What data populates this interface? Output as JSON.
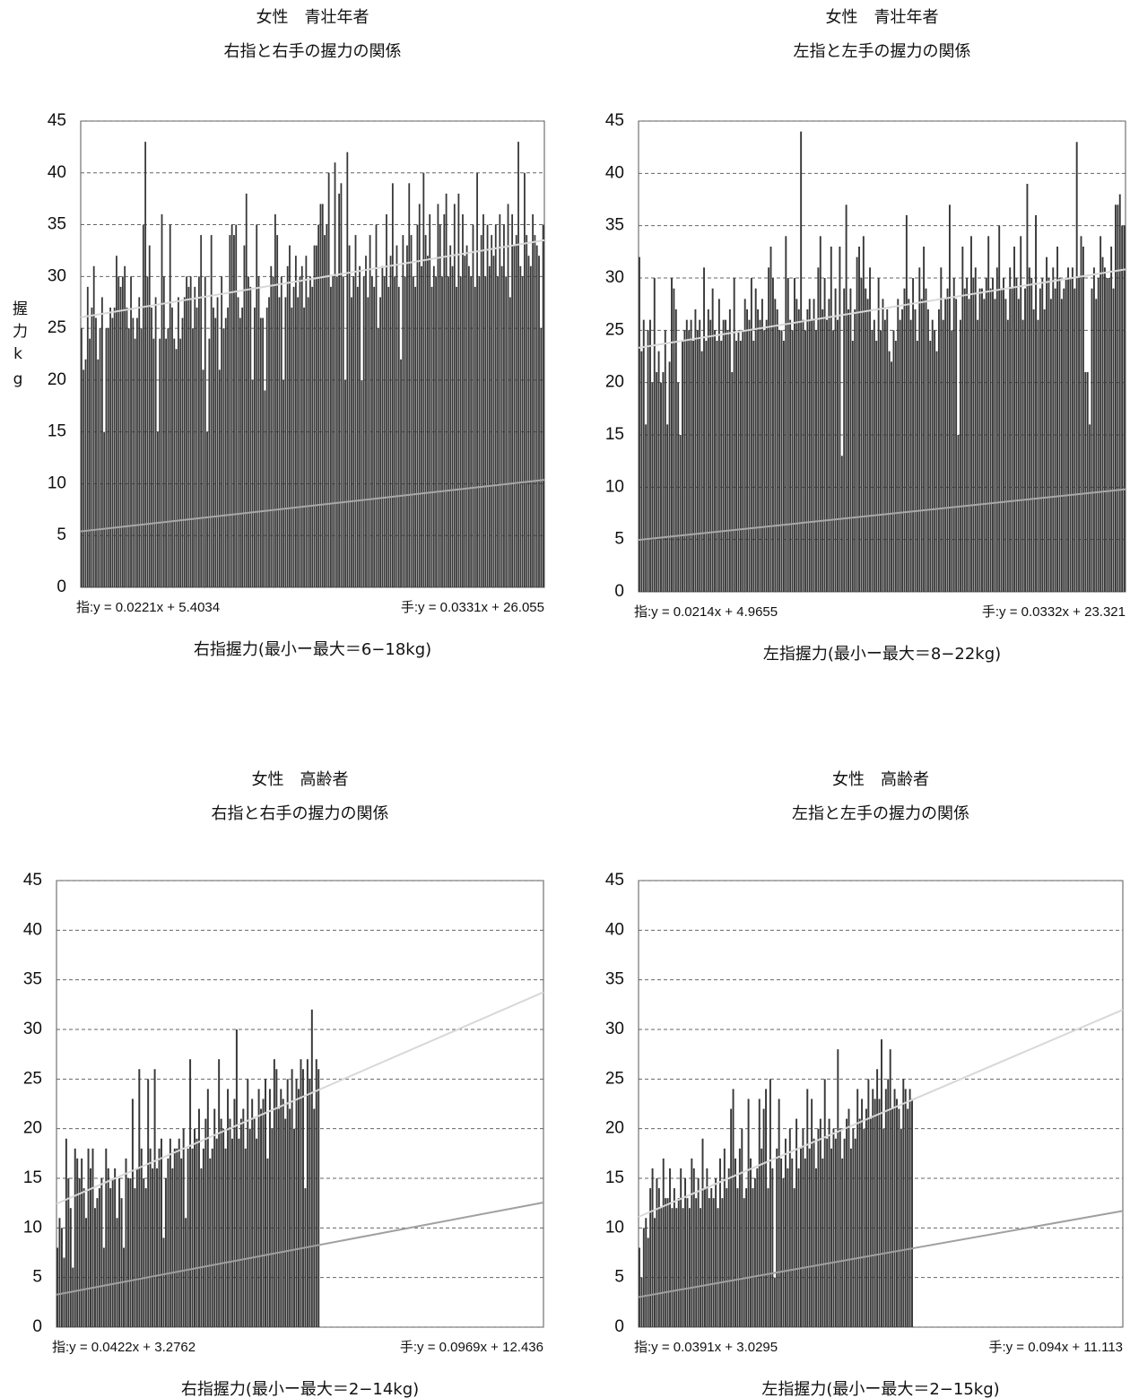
{
  "chart_data": [
    {
      "type": "bar",
      "title": "女性　青壮年者",
      "subtitle": "右指と右手の握力の関係",
      "y_label": "握力kg",
      "x_label": "右指握力(最小ー最大＝6−18kg)",
      "color": "#383838",
      "grid": true,
      "xlim": [
        0,
        225
      ],
      "ylim": [
        0,
        45
      ],
      "yticks": [
        0,
        5,
        10,
        15,
        20,
        25,
        30,
        35,
        40,
        45
      ],
      "values": [
        25,
        21,
        22,
        29,
        24,
        27,
        31,
        26,
        22,
        25,
        28,
        15,
        25,
        25,
        27,
        26,
        27,
        32,
        30,
        29,
        30,
        31,
        27,
        25,
        30,
        26,
        24,
        26,
        28,
        25,
        35,
        43,
        30,
        33,
        27,
        24,
        28,
        15,
        24,
        36,
        30,
        24,
        25,
        35,
        27,
        24,
        23,
        28,
        24,
        26,
        28,
        30,
        29,
        30,
        25,
        29,
        27,
        30,
        34,
        21,
        30,
        15,
        24,
        34,
        27,
        26,
        28,
        21,
        30,
        25,
        26,
        27,
        34,
        35,
        34,
        35,
        28,
        26,
        27,
        33,
        38,
        30,
        29,
        20,
        27,
        35,
        30,
        26,
        26,
        19,
        27,
        28,
        31,
        30,
        36,
        34,
        28,
        30,
        20,
        28,
        31,
        33,
        27,
        29,
        32,
        28,
        30,
        31,
        27,
        32,
        28,
        30,
        29,
        33,
        33,
        35,
        37,
        37,
        34,
        35,
        40,
        29,
        30,
        41,
        30,
        38,
        39,
        30,
        20,
        42,
        33,
        28,
        30,
        34,
        29,
        31,
        20,
        30,
        32,
        28,
        34,
        30,
        29,
        35,
        25,
        28,
        31,
        30,
        36,
        29,
        32,
        39,
        30,
        33,
        29,
        22,
        34,
        30,
        33,
        39,
        34,
        30,
        29,
        35,
        37,
        31,
        40,
        34,
        32,
        36,
        29,
        31,
        30,
        37,
        35,
        30,
        36,
        38,
        30,
        33,
        31,
        37,
        29,
        38,
        30,
        36,
        32,
        33,
        31,
        30,
        35,
        29,
        40,
        30,
        34,
        36,
        30,
        35,
        31,
        34,
        32,
        35,
        30,
        36,
        31,
        35,
        30,
        37,
        28,
        36,
        33,
        34,
        43,
        31,
        30,
        40,
        34,
        32,
        31,
        36,
        34,
        33,
        32,
        25,
        35
      ],
      "trendlines": [
        {
          "label": "指:y = 0.0221x + 5.4034",
          "slope": 0.0221,
          "intercept": 5.4034,
          "color": "#a8a8a8"
        },
        {
          "label": "手:y = 0.0331x + 26.055",
          "slope": 0.0331,
          "intercept": 26.055,
          "color": "#d8d8d8"
        }
      ]
    },
    {
      "type": "bar",
      "title": "女性　青壮年者",
      "subtitle": "左指と左手の握力の関係",
      "x_label": "左指握力(最小ー最大＝8−22kg)",
      "color": "#383838",
      "grid": true,
      "xlim": [
        0,
        226
      ],
      "ylim": [
        0,
        45
      ],
      "yticks": [
        0,
        5,
        10,
        15,
        20,
        25,
        30,
        35,
        40,
        45
      ],
      "values": [
        32,
        23,
        26,
        16,
        25,
        26,
        20,
        30,
        21,
        23,
        20,
        21,
        25,
        16,
        22,
        30,
        29,
        27,
        20,
        15,
        24,
        25,
        26,
        25,
        26,
        24,
        27,
        25,
        26,
        23,
        31,
        24,
        27,
        26,
        29,
        25,
        24,
        28,
        24,
        26,
        26,
        25,
        27,
        21,
        30,
        24,
        25,
        24,
        25,
        28,
        27,
        26,
        30,
        24,
        29,
        27,
        26,
        28,
        25,
        26,
        31,
        33,
        30,
        28,
        27,
        25,
        25,
        24,
        34,
        30,
        26,
        25,
        30,
        28,
        27,
        44,
        26,
        25,
        27,
        28,
        26,
        28,
        25,
        31,
        34,
        27,
        30,
        26,
        28,
        33,
        25,
        29,
        26,
        33,
        13,
        29,
        37,
        27,
        29,
        24,
        27,
        32,
        33,
        30,
        34,
        29,
        28,
        31,
        25,
        26,
        24,
        30,
        25,
        28,
        26,
        27,
        23,
        22,
        25,
        24,
        28,
        26,
        27,
        29,
        36,
        28,
        26,
        30,
        27,
        24,
        31,
        28,
        33,
        29,
        27,
        24,
        26,
        25,
        23,
        27,
        31,
        26,
        28,
        29,
        37,
        25,
        30,
        28,
        15,
        26,
        33,
        29,
        30,
        28,
        34,
        30,
        31,
        26,
        29,
        29,
        28,
        30,
        34,
        29,
        30,
        28,
        31,
        35,
        29,
        30,
        28,
        26,
        31,
        29,
        33,
        30,
        28,
        34,
        26,
        29,
        39,
        31,
        30,
        27,
        36,
        26,
        29,
        30,
        27,
        32,
        30,
        28,
        31,
        29,
        33,
        30,
        28,
        29,
        30,
        31,
        30,
        31,
        29,
        43,
        30,
        34,
        33,
        21,
        21,
        16,
        29,
        31,
        28,
        30,
        34,
        32,
        31,
        30,
        30,
        33,
        29,
        37,
        37,
        38,
        35,
        35
      ],
      "trendlines": [
        {
          "label": "指:y = 0.0214x + 4.9655",
          "slope": 0.0214,
          "intercept": 4.9655,
          "color": "#a8a8a8"
        },
        {
          "label": "手:y = 0.0332x + 23.321",
          "slope": 0.0332,
          "intercept": 23.321,
          "color": "#d8d8d8"
        }
      ]
    },
    {
      "type": "bar",
      "title": "女性　高齢者",
      "subtitle": "右指と右手の握力の関係",
      "x_label": "右指握力(最小ー最大＝2−14kg)",
      "color": "#383838",
      "grid": true,
      "xlim": [
        0,
        220
      ],
      "ylim": [
        0,
        45
      ],
      "yticks": [
        0,
        5,
        10,
        15,
        20,
        25,
        30,
        35,
        40,
        45
      ],
      "values": [
        8,
        11,
        10,
        7,
        19,
        15,
        12,
        6,
        18,
        17,
        15,
        17,
        14,
        11,
        18,
        16,
        18,
        12,
        13,
        14,
        15,
        8,
        18,
        16,
        14,
        15,
        16,
        11,
        15,
        13,
        8,
        17,
        15,
        15,
        23,
        14,
        16,
        26,
        18,
        15,
        14,
        25,
        18,
        16,
        26,
        16,
        18,
        19,
        9,
        15,
        17,
        19,
        16,
        18,
        18,
        19,
        17,
        20,
        11,
        18,
        27,
        18,
        20,
        19,
        22,
        16,
        18,
        21,
        24,
        17,
        18,
        22,
        19,
        27,
        21,
        20,
        18,
        24,
        21,
        19,
        23,
        30,
        19,
        21,
        22,
        18,
        25,
        20,
        23,
        21,
        19,
        24,
        22,
        23,
        25,
        17,
        24,
        20,
        27,
        26,
        22,
        24,
        23,
        21,
        25,
        22,
        26,
        20,
        25,
        24,
        27,
        26,
        14,
        27,
        25,
        32,
        22,
        27,
        26
      ],
      "trendlines": [
        {
          "label": "指:y = 0.0422x + 3.2762",
          "slope": 0.0422,
          "intercept": 3.2762,
          "color": "#a0a0a0"
        },
        {
          "label": "手:y = 0.0969x + 12.436",
          "slope": 0.0969,
          "intercept": 12.436,
          "color": "#d8d8d8"
        }
      ]
    },
    {
      "type": "bar",
      "title": "女性　高齢者",
      "subtitle": "左指と左手の握力の関係",
      "x_label": "左指握力(最小ー最大＝2−15kg)",
      "color": "#383838",
      "grid": true,
      "xlim": [
        0,
        222
      ],
      "ylim": [
        0,
        45
      ],
      "yticks": [
        0,
        5,
        10,
        15,
        20,
        25,
        30,
        35,
        40,
        45
      ],
      "values": [
        8,
        5,
        10,
        11,
        9,
        14,
        16,
        11,
        15,
        14,
        12,
        17,
        13,
        13,
        16,
        12,
        14,
        12,
        13,
        16,
        12,
        15,
        13,
        12,
        17,
        16,
        13,
        15,
        12,
        19,
        14,
        16,
        13,
        14,
        13,
        15,
        12,
        17,
        13,
        18,
        14,
        16,
        22,
        24,
        17,
        14,
        18,
        20,
        13,
        14,
        23,
        17,
        14,
        15,
        16,
        23,
        18,
        22,
        24,
        14,
        25,
        16,
        5,
        18,
        23,
        17,
        15,
        19,
        16,
        20,
        17,
        14,
        21,
        16,
        18,
        20,
        17,
        24,
        18,
        23,
        19,
        16,
        20,
        21,
        17,
        25,
        19,
        21,
        18,
        20,
        19,
        28,
        20,
        17,
        19,
        21,
        22,
        18,
        20,
        19,
        24,
        21,
        23,
        20,
        22,
        25,
        21,
        24,
        23,
        26,
        23,
        29,
        20,
        24,
        25,
        28,
        22,
        24,
        23,
        22,
        20,
        25,
        24,
        22,
        24,
        23
      ],
      "trendlines": [
        {
          "label": "指:y = 0.0391x + 3.0295",
          "slope": 0.0391,
          "intercept": 3.0295,
          "color": "#a0a0a0"
        },
        {
          "label": "手:y = 0.094x + 11.113",
          "slope": 0.094,
          "intercept": 11.113,
          "color": "#d8d8d8"
        }
      ]
    }
  ]
}
